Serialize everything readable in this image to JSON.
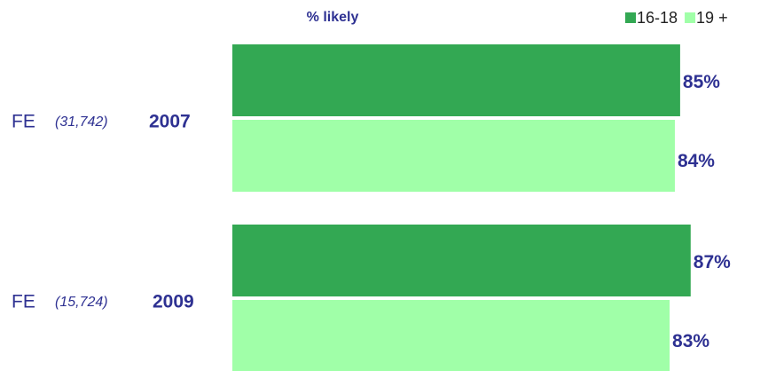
{
  "chart_data": {
    "type": "hbar",
    "axis_label": "% likely",
    "categories": [
      "2007",
      "2009"
    ],
    "group_prefix": [
      "FE",
      "FE"
    ],
    "group_counts": [
      "(31,742)",
      "(15,724)"
    ],
    "series": [
      {
        "name": "16-18",
        "color": "#33a853",
        "values": [
          85,
          87
        ],
        "value_labels": [
          "85%",
          "87%"
        ]
      },
      {
        "name": "19 +",
        "color": "#a0ffa8",
        "values": [
          84,
          83
        ],
        "value_labels": [
          "84%",
          "83%"
        ]
      }
    ],
    "legend": "top-right"
  }
}
